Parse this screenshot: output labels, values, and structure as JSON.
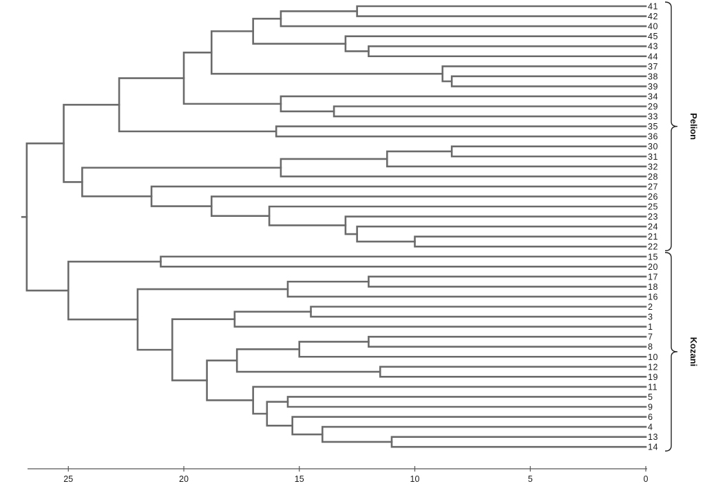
{
  "chart_data": {
    "type": "dendrogram",
    "x_axis": {
      "ticks": [
        25,
        20,
        15,
        10,
        5,
        0
      ],
      "range": [
        27,
        0
      ]
    },
    "leaves": [
      "41",
      "42",
      "40",
      "45",
      "43",
      "44",
      "37",
      "38",
      "39",
      "34",
      "29",
      "33",
      "35",
      "36",
      "30",
      "31",
      "32",
      "28",
      "27",
      "26",
      "25",
      "23",
      "24",
      "21",
      "22",
      "15",
      "20",
      "17",
      "18",
      "16",
      "2",
      "3",
      "1",
      "7",
      "8",
      "10",
      "12",
      "19",
      "11",
      "5",
      "9",
      "6",
      "4",
      "13",
      "14"
    ],
    "merges": [
      {
        "a": 0,
        "b": 1,
        "h": 12.5
      },
      {
        "a": "m0",
        "b": 2,
        "h": 15.8
      },
      {
        "a": 4,
        "b": 5,
        "h": 12.0
      },
      {
        "a": 3,
        "b": "m2",
        "h": 13.0
      },
      {
        "a": "m1",
        "b": "m3",
        "h": 17.0
      },
      {
        "a": 7,
        "b": 8,
        "h": 8.4
      },
      {
        "a": 6,
        "b": "m5",
        "h": 8.8
      },
      {
        "a": "m4",
        "b": "m6",
        "h": 18.8
      },
      {
        "a": 10,
        "b": 11,
        "h": 13.5
      },
      {
        "a": 9,
        "b": "m8",
        "h": 15.8
      },
      {
        "a": "m7",
        "b": "m9",
        "h": 20.0
      },
      {
        "a": 12,
        "b": 13,
        "h": 16.0
      },
      {
        "a": "m10",
        "b": "m11",
        "h": 22.8
      },
      {
        "a": 14,
        "b": 15,
        "h": 8.4
      },
      {
        "a": "m13",
        "b": 16,
        "h": 11.2
      },
      {
        "a": "m14",
        "b": 17,
        "h": 15.8
      },
      {
        "a": 23,
        "b": 24,
        "h": 10.0
      },
      {
        "a": 22,
        "b": "m16",
        "h": 12.5
      },
      {
        "a": 21,
        "b": "m17",
        "h": 13.0
      },
      {
        "a": 20,
        "b": "m18",
        "h": 16.3
      },
      {
        "a": 19,
        "b": "m19",
        "h": 18.8
      },
      {
        "a": 18,
        "b": "m20",
        "h": 21.4
      },
      {
        "a": "m15",
        "b": "m21",
        "h": 24.4
      },
      {
        "a": "m12",
        "b": "m22",
        "h": 25.2
      },
      {
        "a": 25,
        "b": 26,
        "h": 21.0
      },
      {
        "a": 27,
        "b": 28,
        "h": 12.0
      },
      {
        "a": "m25",
        "b": 29,
        "h": 15.5
      },
      {
        "a": 30,
        "b": 31,
        "h": 14.5
      },
      {
        "a": "m27",
        "b": 32,
        "h": 17.8
      },
      {
        "a": 33,
        "b": 34,
        "h": 12.0
      },
      {
        "a": "m29",
        "b": 35,
        "h": 15.0
      },
      {
        "a": 36,
        "b": 37,
        "h": 11.5
      },
      {
        "a": "m30",
        "b": "m31",
        "h": 17.7
      },
      {
        "a": 39,
        "b": 40,
        "h": 15.5
      },
      {
        "a": 43,
        "b": 44,
        "h": 11.0
      },
      {
        "a": 42,
        "b": "m34",
        "h": 14.0
      },
      {
        "a": 41,
        "b": "m35",
        "h": 15.3
      },
      {
        "a": "m33",
        "b": "m36",
        "h": 16.4
      },
      {
        "a": 38,
        "b": "m37",
        "h": 17.0
      },
      {
        "a": "m32",
        "b": "m38",
        "h": 19.0
      },
      {
        "a": "m28",
        "b": "m39",
        "h": 20.5
      },
      {
        "a": "m26",
        "b": "m40",
        "h": 22.0
      },
      {
        "a": "m24",
        "b": "m41",
        "h": 25.0
      },
      {
        "a": "m23",
        "b": "m42",
        "h": 26.8
      }
    ],
    "root_stub_h": 27.0,
    "groups": [
      {
        "label": "Pelion",
        "from": 0,
        "to": 24
      },
      {
        "label": "Kozani",
        "from": 25,
        "to": 44
      }
    ]
  }
}
